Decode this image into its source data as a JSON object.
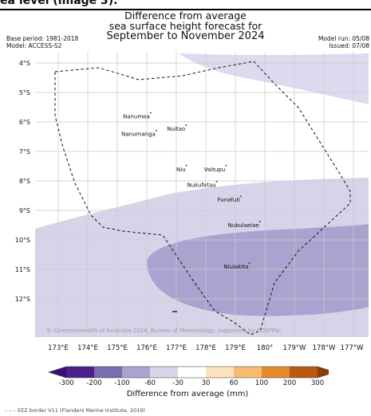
{
  "caption": "ea level (image 3).",
  "title": {
    "line1": "Difference from average",
    "line2": "sea surface height forecast for",
    "line3": "September to November 2024"
  },
  "meta": {
    "base_period": "Base period: 1981-2018",
    "model": "Model: ACCESS-S2",
    "model_run": "Model run: 05/08",
    "issued": "Issued: 07/08"
  },
  "axes": {
    "lat_labels": [
      "4°S",
      "5°S",
      "6°S",
      "7°S",
      "8°S",
      "9°S",
      "10°S",
      "11°S",
      "12°S"
    ],
    "lon_labels": [
      "173°E",
      "174°E",
      "175°E",
      "176°E",
      "177°E",
      "178°E",
      "179°E",
      "180°",
      "179°W",
      "178°W",
      "177°W"
    ]
  },
  "places": [
    {
      "name": "Nanumea",
      "lon": 176.13,
      "lat": -5.69
    },
    {
      "name": "Nuitao",
      "lon": 177.33,
      "lat": -6.11
    },
    {
      "name": "Nanumanga",
      "lon": 176.32,
      "lat": -6.29
    },
    {
      "name": "Niu",
      "lon": 177.34,
      "lat": -7.48
    },
    {
      "name": "Vaitupu",
      "lon": 178.68,
      "lat": -7.48
    },
    {
      "name": "Nukufetau",
      "lon": 178.37,
      "lat": -8.02
    },
    {
      "name": "Funafuti",
      "lon": 179.19,
      "lat": -8.52
    },
    {
      "name": "Nukulaelae",
      "lon": 179.83,
      "lat": -9.38
    },
    {
      "name": "Niulakita",
      "lon": 179.47,
      "lat": -10.79
    }
  ],
  "credit": "© Commonwealth of Australia 2024, Bureau of Meteorology, supported by COSPPac",
  "colorbar": {
    "title": "Difference from average (mm)",
    "labels": [
      "-300",
      "-200",
      "-100",
      "-60",
      "-30",
      "30",
      "60",
      "100",
      "200",
      "300"
    ],
    "colors": [
      "#4b1f8c",
      "#7b6bb0",
      "#aaa3cf",
      "#d7d4ea",
      "#ffffff",
      "#fde3bf",
      "#f7bb72",
      "#e48a2a",
      "#b95a10"
    ],
    "under_color": "#3b0f70",
    "over_color": "#8c3f0a"
  },
  "legend": "EEZ border V11 (Flanders Marine Institute, 2019)"
}
